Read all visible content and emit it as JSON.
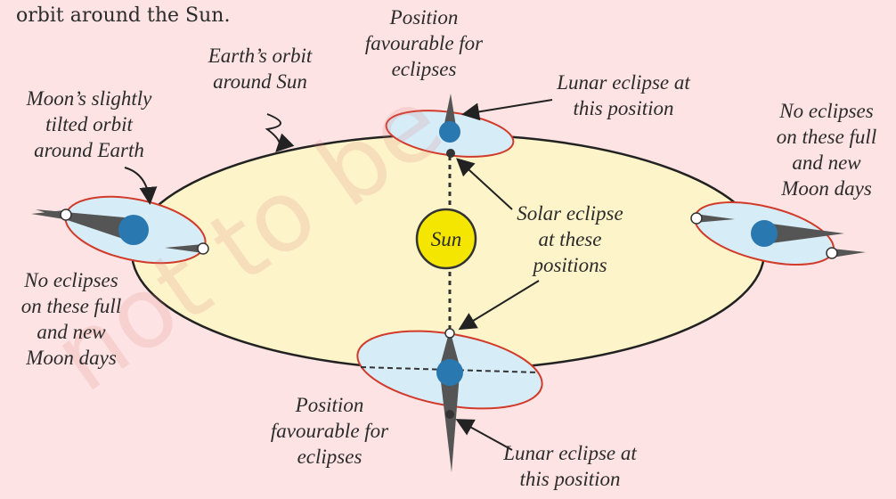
{
  "intro": "orbit around the Sun.",
  "watermark": "not to be",
  "sun": "Sun",
  "labels": [
    {
      "lines": [
        "Position",
        "favourable for",
        "eclipses"
      ]
    },
    {
      "lines": [
        "Earth’s orbit",
        "around Sun"
      ]
    },
    {
      "lines": [
        "Moon’s slightly",
        "tilted orbit",
        "around Earth"
      ]
    },
    {
      "lines": [
        "Lunar eclipse at",
        "this position"
      ]
    },
    {
      "lines": [
        "No eclipses",
        "on these full",
        "and new",
        "Moon days"
      ]
    },
    {
      "lines": [
        "Solar eclipse",
        "at these",
        "positions"
      ]
    },
    {
      "lines": [
        "No eclipses",
        "on these full",
        "and new",
        "Moon days"
      ]
    },
    {
      "lines": [
        "Position",
        "favourable for",
        "eclipses"
      ]
    },
    {
      "lines": [
        "Lunar eclipse at",
        "this position"
      ]
    }
  ]
}
